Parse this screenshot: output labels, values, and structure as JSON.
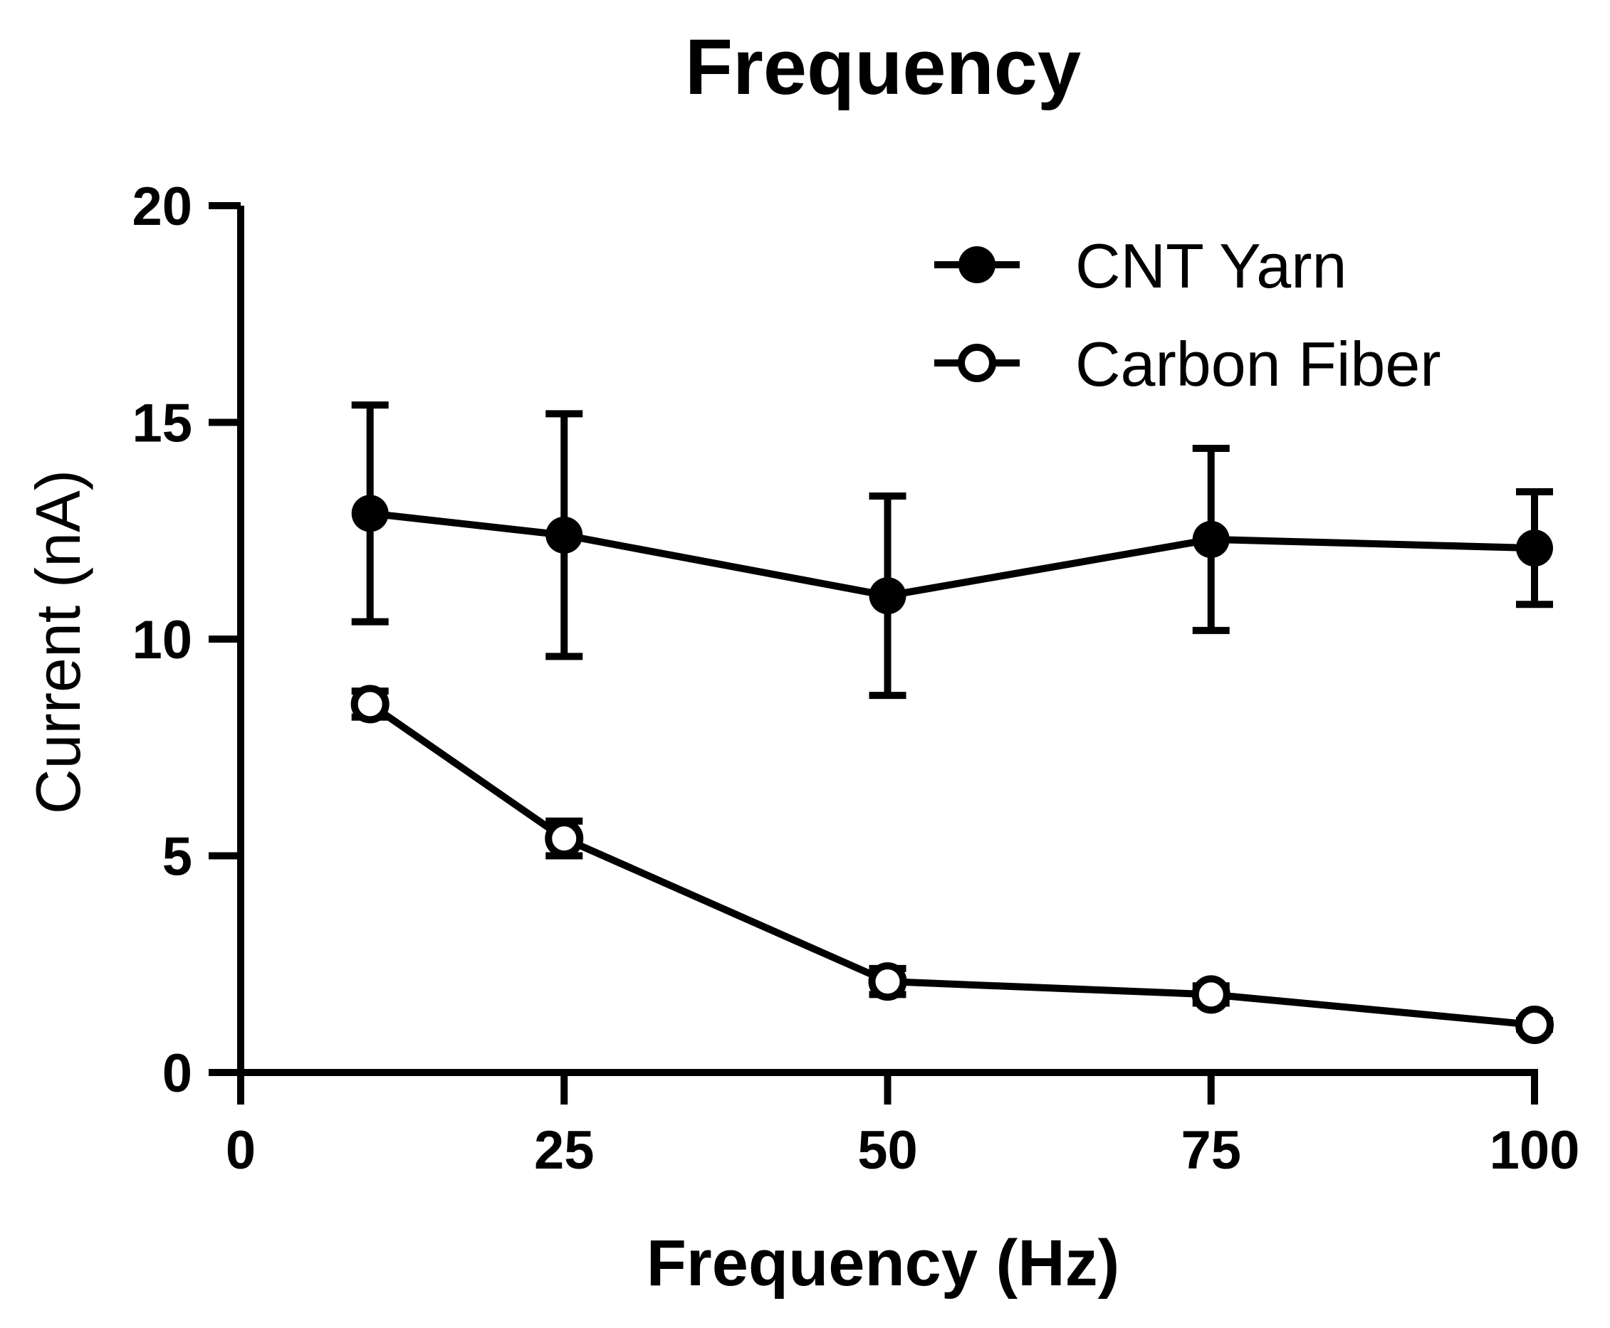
{
  "chart_data": {
    "type": "line",
    "title": "Frequency",
    "xlabel": "Frequency (Hz)",
    "ylabel": "Current (nA)",
    "xlim": [
      0,
      100
    ],
    "ylim": [
      0,
      20
    ],
    "xticks": [
      0,
      25,
      50,
      75,
      100
    ],
    "xtick_labels": [
      "0",
      "25",
      "50",
      "75",
      "100"
    ],
    "yticks": [
      0,
      5,
      10,
      15,
      20
    ],
    "ytick_labels": [
      "0",
      "5",
      "10",
      "15",
      "20"
    ],
    "grid": false,
    "legend_position": "top-right",
    "series": [
      {
        "name": "CNT Yarn",
        "marker": "filled-circle",
        "color": "#000000",
        "x": [
          10,
          25,
          50,
          75,
          100
        ],
        "y": [
          12.9,
          12.4,
          11.0,
          12.3,
          12.1
        ],
        "error": [
          2.5,
          2.8,
          2.3,
          2.1,
          1.3
        ]
      },
      {
        "name": "Carbon Fiber",
        "marker": "open-circle",
        "color": "#000000",
        "x": [
          10,
          25,
          50,
          75,
          100
        ],
        "y": [
          8.5,
          5.4,
          2.1,
          1.8,
          1.1
        ],
        "error": [
          0.3,
          0.4,
          0.3,
          0.2,
          0.1
        ]
      }
    ]
  }
}
